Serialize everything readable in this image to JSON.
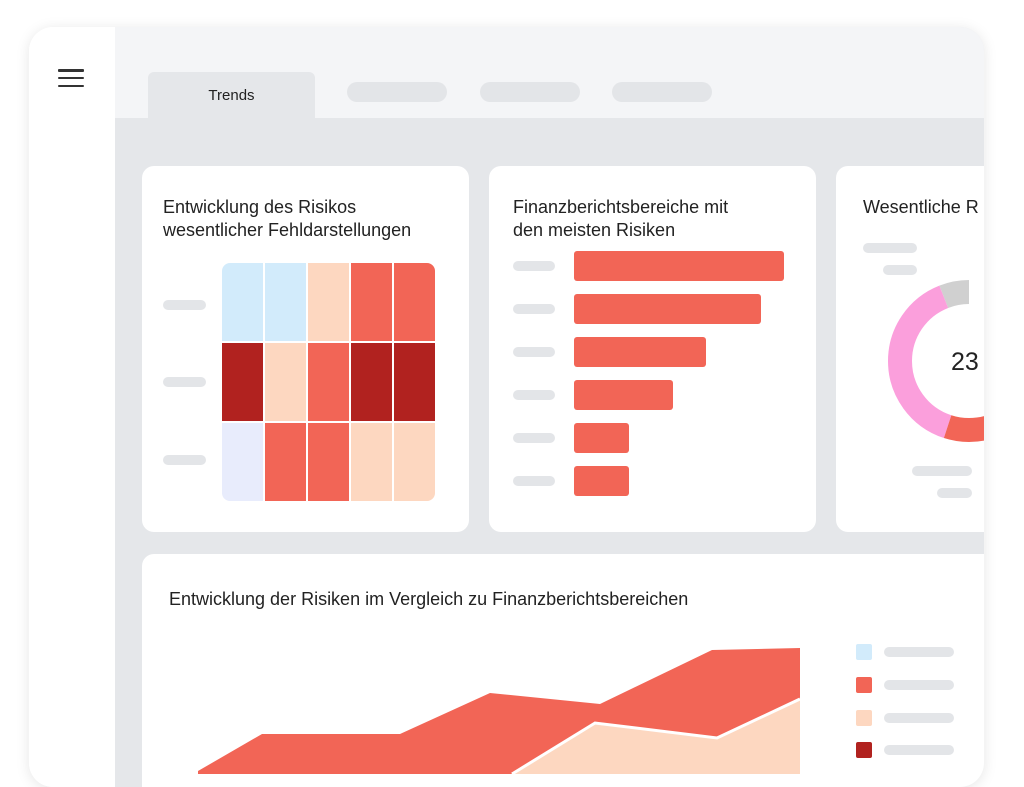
{
  "colors": {
    "accent": "#f26556",
    "dark_red": "#b1221f",
    "peach": "#fdd7c0",
    "light_blue": "#d2ebfb",
    "lavender": "#e8ecfc",
    "pink": "#fb9fdc",
    "grey": "#d0d0d0"
  },
  "tabs": [
    {
      "label": "Trends",
      "active": true
    },
    {
      "label": "",
      "active": false
    },
    {
      "label": "",
      "active": false
    },
    {
      "label": "",
      "active": false
    }
  ],
  "cards": {
    "heatmap": {
      "title_line1": "Entwicklung des Risikos",
      "title_line2": "wesentlicher Fehldarstellungen",
      "cells": [
        [
          "light_blue",
          "light_blue",
          "peach",
          "accent",
          "accent"
        ],
        [
          "dark_red",
          "peach",
          "accent",
          "dark_red",
          "dark_red"
        ],
        [
          "lavender",
          "accent",
          "accent",
          "peach",
          "peach"
        ]
      ]
    },
    "bars": {
      "title_line1": "Finanzberichtsbereiche mit",
      "title_line2": "den meisten Risiken",
      "values": [
        100,
        89,
        63,
        47,
        26,
        26
      ]
    },
    "donut": {
      "title": "Wesentliche R",
      "value": "23"
    },
    "area": {
      "title": "Entwicklung der Risiken im Vergleich zu Finanzberichtsbereichen",
      "legend_colors": [
        "light_blue",
        "accent",
        "peach",
        "dark_red"
      ]
    }
  }
}
